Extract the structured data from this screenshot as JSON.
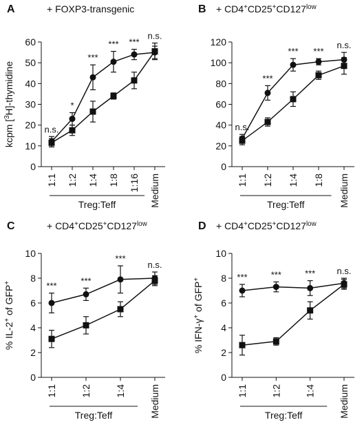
{
  "chart_data": [
    {
      "type": "line",
      "panel_letter": "A",
      "title": "+ FOXP3-transgenic",
      "title_parts": [],
      "ylabel": "kcpm [³H]-thymidine",
      "ylabel_parts": [
        {
          "t": "kcpm ["
        },
        {
          "t": "3",
          "sup": true
        },
        {
          "t": "H]-thymidine"
        }
      ],
      "xlabel": "Treg:Teff",
      "categories": [
        "1:1",
        "1:2",
        "1:4",
        "1:8",
        "1:16",
        "Medium"
      ],
      "ylim": [
        0,
        60
      ],
      "yticks": [
        0,
        10,
        20,
        30,
        40,
        50,
        60
      ],
      "series": [
        {
          "marker": "circle",
          "values": [
            12,
            23,
            43,
            50.5,
            54,
            55
          ],
          "errors": [
            2.5,
            3,
            6,
            5,
            2.5,
            3
          ]
        },
        {
          "marker": "square",
          "values": [
            11.5,
            17.5,
            26.5,
            34,
            41.5,
            55.5
          ],
          "errors": [
            2,
            2.5,
            5,
            1.5,
            4,
            4
          ]
        }
      ],
      "significance": [
        "n.s.",
        "*",
        "***",
        "***",
        "***",
        "n.s."
      ]
    },
    {
      "type": "line",
      "panel_letter": "B",
      "title": "+ CD4+CD25+CD127low",
      "title_parts": [
        {
          "t": "+ CD4"
        },
        {
          "t": "+",
          "sup": true
        },
        {
          "t": "CD25"
        },
        {
          "t": "+",
          "sup": true
        },
        {
          "t": "CD127"
        },
        {
          "t": "low",
          "sup": true
        }
      ],
      "ylabel": "",
      "ylabel_parts": [],
      "xlabel": "Treg:Teff",
      "categories": [
        "1:1",
        "1:2",
        "1:4",
        "1:8",
        "Medium"
      ],
      "ylim": [
        0,
        120
      ],
      "yticks": [
        0,
        20,
        40,
        60,
        80,
        100,
        120
      ],
      "series": [
        {
          "marker": "circle",
          "values": [
            27,
            71,
            98,
            101,
            103
          ],
          "errors": [
            4,
            7,
            6,
            3,
            7
          ]
        },
        {
          "marker": "square",
          "values": [
            25,
            43,
            65,
            88,
            97
          ],
          "errors": [
            4,
            4,
            7,
            4,
            8
          ]
        }
      ],
      "significance": [
        "n.s.",
        "***",
        "***",
        "***",
        "n.s."
      ]
    },
    {
      "type": "line",
      "panel_letter": "C",
      "title": "+ CD4+CD25+CD127low",
      "title_parts": [
        {
          "t": "+ CD4"
        },
        {
          "t": "+",
          "sup": true
        },
        {
          "t": "CD25"
        },
        {
          "t": "+",
          "sup": true
        },
        {
          "t": "CD127"
        },
        {
          "t": "low",
          "sup": true
        }
      ],
      "ylabel": "% IL-2+ of GFP+",
      "ylabel_parts": [
        {
          "t": "% IL-2"
        },
        {
          "t": "+",
          "sup": true
        },
        {
          "t": " of GFP"
        },
        {
          "t": "+",
          "sup": true
        }
      ],
      "xlabel": "Treg:Teff",
      "categories": [
        "1:1",
        "1:2",
        "1:4",
        "Medium"
      ],
      "ylim": [
        0,
        10
      ],
      "yticks": [
        0,
        2,
        4,
        6,
        8,
        10
      ],
      "series": [
        {
          "marker": "circle",
          "values": [
            6,
            6.7,
            7.9,
            8
          ],
          "errors": [
            0.8,
            0.5,
            1.1,
            0.5
          ]
        },
        {
          "marker": "square",
          "values": [
            3.1,
            4.2,
            5.5,
            7.8
          ],
          "errors": [
            0.7,
            0.7,
            0.6,
            0.4
          ]
        }
      ],
      "significance": [
        "***",
        "***",
        "***",
        "n.s."
      ]
    },
    {
      "type": "line",
      "panel_letter": "D",
      "title": "+ CD4+CD25+CD127low",
      "title_parts": [
        {
          "t": "+ CD4"
        },
        {
          "t": "+",
          "sup": true
        },
        {
          "t": "CD25"
        },
        {
          "t": "+",
          "sup": true
        },
        {
          "t": "CD127"
        },
        {
          "t": "low",
          "sup": true
        }
      ],
      "ylabel": "% IFN-γ+ of GFP+",
      "ylabel_parts": [
        {
          "t": "% IFN-γ"
        },
        {
          "t": "+",
          "sup": true
        },
        {
          "t": " of GFP"
        },
        {
          "t": "+",
          "sup": true
        }
      ],
      "xlabel": "Treg:Teff",
      "categories": [
        "1:1",
        "1:2",
        "1:4",
        "Medium"
      ],
      "ylim": [
        0,
        10
      ],
      "yticks": [
        0,
        2,
        4,
        6,
        8,
        10
      ],
      "series": [
        {
          "marker": "circle",
          "values": [
            7,
            7.3,
            7.2,
            7.6
          ],
          "errors": [
            0.5,
            0.4,
            0.6,
            0.4
          ]
        },
        {
          "marker": "square",
          "values": [
            2.6,
            2.9,
            5.4,
            7.5
          ],
          "errors": [
            0.8,
            0.3,
            0.7,
            0.4
          ]
        }
      ],
      "significance": [
        "***",
        "***",
        "***",
        "n.s."
      ]
    }
  ]
}
